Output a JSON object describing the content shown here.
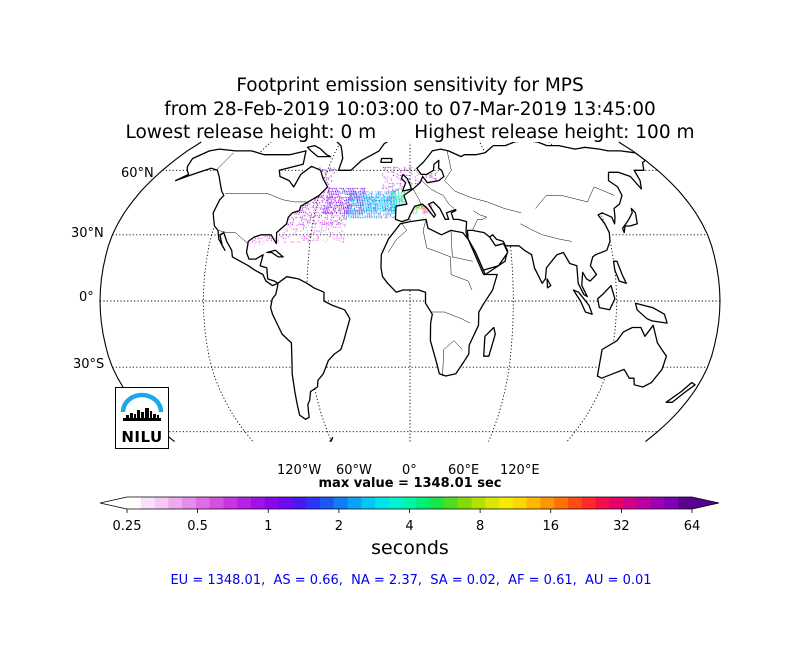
{
  "title": {
    "line1": "Footprint emission sensitivity for MPS",
    "line2": "from 28-Feb-2019 10:03:00 to 07-Mar-2019 13:45:00",
    "line3_left": "Lowest release height: 0 m",
    "line3_right": "Highest release height: 100 m"
  },
  "map": {
    "projection": "robinson",
    "lat_labels": [
      "60°N",
      "30°N",
      "0°",
      "30°S"
    ],
    "lon_labels": [
      "120°W",
      "60°W",
      "0°",
      "60°E",
      "120°E"
    ],
    "gridlines": true,
    "ocean_color": "#ffffff",
    "coastline_color": "#000000"
  },
  "max_value_text": "max value = 1348.01 sec",
  "colorbar": {
    "unit": "seconds",
    "tick_labels": [
      "0.25",
      "0.5",
      "1",
      "2",
      "4",
      "8",
      "16",
      "32",
      "64"
    ],
    "extend": "both",
    "colors": [
      "#ffffff",
      "#fbe0fb",
      "#f5c8f5",
      "#eeaaf0",
      "#e68ceb",
      "#de6de6",
      "#d54fe3",
      "#c933e2",
      "#b720e6",
      "#a210ea",
      "#8a06ee",
      "#6e0af2",
      "#4a18f5",
      "#2c34f7",
      "#1c58f8",
      "#0f7df8",
      "#07a3f7",
      "#02c6f3",
      "#00e2ea",
      "#00f2d0",
      "#00f5a6",
      "#00ef76",
      "#19e748",
      "#4cdf20",
      "#82dc06",
      "#b2e000",
      "#dae600",
      "#f6ea00",
      "#ffd600",
      "#ffb800",
      "#ff9600",
      "#ff7200",
      "#ff4d10",
      "#ff2a2c",
      "#f50d4a",
      "#e6006a",
      "#d0008a",
      "#b800a2",
      "#9c00b2",
      "#7c00b4",
      "#5a0090"
    ]
  },
  "region_totals": "EU = 1348.01,  AS = 0.66,  NA = 2.37,  SA = 0.02,  AF = 0.61,  AU = 0.01",
  "logo": {
    "text": "NILU",
    "arc_color": "#1ba8e8"
  }
}
